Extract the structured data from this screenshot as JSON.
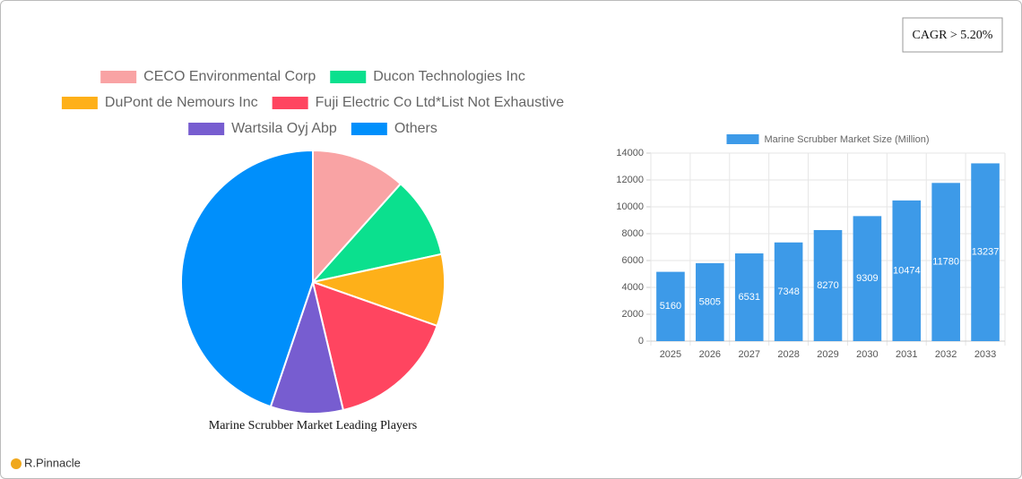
{
  "chart_data": [
    {
      "type": "pie",
      "title": "Marine Scrubber Market Leading Players",
      "categories": [
        "CECO Environmental Corp",
        "Ducon Technologies Inc",
        "DuPont de Nemours Inc",
        "Fuji Electric Co Ltd*List Not Exhaustive",
        "Wartsila Oyj Abp",
        "Others"
      ],
      "values": [
        11.6,
        10,
        8.8,
        15.9,
        8.9,
        44.8
      ],
      "colors": [
        "#f9a3a4",
        "#0be08e",
        "#feb019",
        "#ff4560",
        "#775dd0",
        "#008ffb"
      ],
      "legend": "top"
    },
    {
      "type": "bar",
      "categories": [
        "2025",
        "2026",
        "2027",
        "2028",
        "2029",
        "2030",
        "2031",
        "2032",
        "2033"
      ],
      "series": [
        {
          "name": "Marine Scrubber Market Size (Million)",
          "color": "#3d9ae8",
          "values": [
            5160,
            5805,
            6531,
            7348,
            8270,
            9309,
            10474,
            11780,
            13237
          ]
        }
      ],
      "ylim": [
        0,
        14000
      ],
      "yticks": [
        0,
        2000,
        4000,
        6000,
        8000,
        10000,
        12000,
        14000
      ],
      "grid": true,
      "legend": "top"
    }
  ],
  "badge": "CAGR > 5.20%",
  "brand": "R.Pinnacle"
}
